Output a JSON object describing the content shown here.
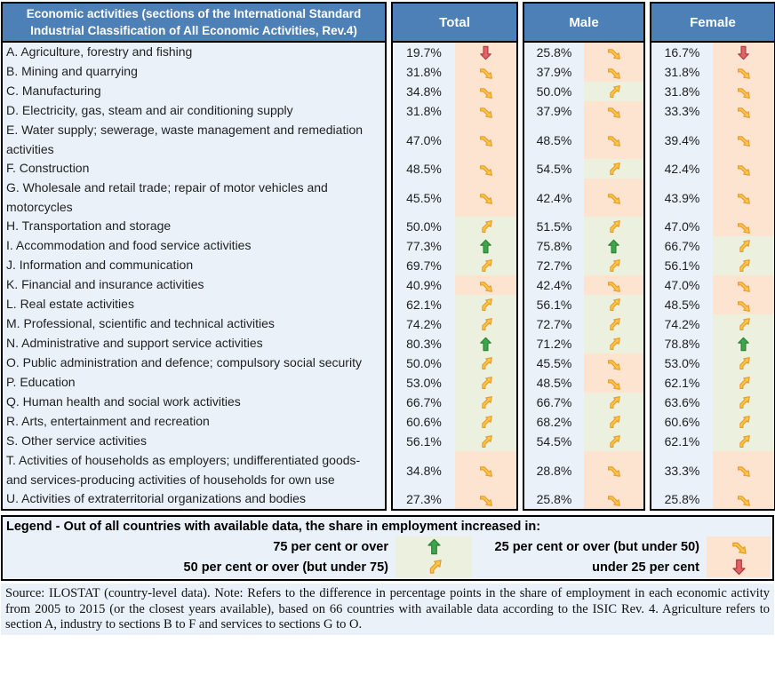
{
  "table": {
    "activities_header": "Economic activities (sections of the International Standard Industrial Classification of All Economic Activities, Rev.4)",
    "group_headers": [
      "Total",
      "Male",
      "Female"
    ]
  },
  "chart_data": {
    "type": "table",
    "columns": [
      "Economic activity",
      "Total %",
      "Total trend",
      "Male %",
      "Male trend",
      "Female %",
      "Female trend"
    ],
    "trend_meaning": {
      "up": "share in employment increased in 75 per cent or over of countries",
      "diag-up": "50 per cent or over (but under 75)",
      "diag-down": "25 per cent or over (but under 50)",
      "down": "under 25 per cent"
    },
    "rows": [
      {
        "activity": "A. Agriculture, forestry and fishing",
        "total": "19.7%",
        "total_trend": "down",
        "male": "25.8%",
        "male_trend": "diag-down",
        "female": "16.7%",
        "female_trend": "down"
      },
      {
        "activity": "B. Mining and quarrying",
        "total": "31.8%",
        "total_trend": "diag-down",
        "male": "37.9%",
        "male_trend": "diag-down",
        "female": "31.8%",
        "female_trend": "diag-down"
      },
      {
        "activity": "C. Manufacturing",
        "total": "34.8%",
        "total_trend": "diag-down",
        "male": "50.0%",
        "male_trend": "diag-up",
        "female": "31.8%",
        "female_trend": "diag-down"
      },
      {
        "activity": "D. Electricity, gas, steam and air conditioning supply",
        "total": "31.8%",
        "total_trend": "diag-down",
        "male": "37.9%",
        "male_trend": "diag-down",
        "female": "33.3%",
        "female_trend": "diag-down"
      },
      {
        "activity": "E. Water supply; sewerage, waste management and remediation activities",
        "total": "47.0%",
        "total_trend": "diag-down",
        "male": "48.5%",
        "male_trend": "diag-down",
        "female": "39.4%",
        "female_trend": "diag-down"
      },
      {
        "activity": "F. Construction",
        "total": "48.5%",
        "total_trend": "diag-down",
        "male": "54.5%",
        "male_trend": "diag-up",
        "female": "42.4%",
        "female_trend": "diag-down"
      },
      {
        "activity": "G. Wholesale and retail trade; repair of motor vehicles and motorcycles",
        "total": "45.5%",
        "total_trend": "diag-down",
        "male": "42.4%",
        "male_trend": "diag-down",
        "female": "43.9%",
        "female_trend": "diag-down"
      },
      {
        "activity": "H. Transportation and storage",
        "total": "50.0%",
        "total_trend": "diag-up",
        "male": "51.5%",
        "male_trend": "diag-up",
        "female": "47.0%",
        "female_trend": "diag-down"
      },
      {
        "activity": "I. Accommodation and food service activities",
        "total": "77.3%",
        "total_trend": "up",
        "male": "75.8%",
        "male_trend": "up",
        "female": "66.7%",
        "female_trend": "diag-up"
      },
      {
        "activity": "J. Information and communication",
        "total": "69.7%",
        "total_trend": "diag-up",
        "male": "72.7%",
        "male_trend": "diag-up",
        "female": "56.1%",
        "female_trend": "diag-up"
      },
      {
        "activity": "K. Financial and insurance activities",
        "total": "40.9%",
        "total_trend": "diag-down",
        "male": "42.4%",
        "male_trend": "diag-down",
        "female": "47.0%",
        "female_trend": "diag-down"
      },
      {
        "activity": "L. Real estate activities",
        "total": "62.1%",
        "total_trend": "diag-up",
        "male": "56.1%",
        "male_trend": "diag-up",
        "female": "48.5%",
        "female_trend": "diag-down"
      },
      {
        "activity": "M. Professional, scientific and technical activities",
        "total": "74.2%",
        "total_trend": "diag-up",
        "male": "72.7%",
        "male_trend": "diag-up",
        "female": "74.2%",
        "female_trend": "diag-up"
      },
      {
        "activity": "N. Administrative and support service activities",
        "total": "80.3%",
        "total_trend": "up",
        "male": "71.2%",
        "male_trend": "diag-up",
        "female": "78.8%",
        "female_trend": "up"
      },
      {
        "activity": "O. Public administration and defence; compulsory social security",
        "total": "50.0%",
        "total_trend": "diag-up",
        "male": "45.5%",
        "male_trend": "diag-down",
        "female": "53.0%",
        "female_trend": "diag-up"
      },
      {
        "activity": "P. Education",
        "total": "53.0%",
        "total_trend": "diag-up",
        "male": "48.5%",
        "male_trend": "diag-down",
        "female": "62.1%",
        "female_trend": "diag-up"
      },
      {
        "activity": "Q. Human health and social work activities",
        "total": "66.7%",
        "total_trend": "diag-up",
        "male": "66.7%",
        "male_trend": "diag-up",
        "female": "63.6%",
        "female_trend": "diag-up"
      },
      {
        "activity": "R. Arts, entertainment and recreation",
        "total": "60.6%",
        "total_trend": "diag-up",
        "male": "68.2%",
        "male_trend": "diag-up",
        "female": "60.6%",
        "female_trend": "diag-up"
      },
      {
        "activity": "S. Other service activities",
        "total": "56.1%",
        "total_trend": "diag-up",
        "male": "54.5%",
        "male_trend": "diag-up",
        "female": "62.1%",
        "female_trend": "diag-up"
      },
      {
        "activity": "T. Activities of households as employers; undifferentiated goods- and services-producing activities of households for own use",
        "total": "34.8%",
        "total_trend": "diag-down",
        "male": "28.8%",
        "male_trend": "diag-down",
        "female": "33.3%",
        "female_trend": "diag-down"
      },
      {
        "activity": "U. Activities of extraterritorial organizations and bodies",
        "total": "27.3%",
        "total_trend": "diag-down",
        "male": "25.8%",
        "male_trend": "diag-down",
        "female": "25.8%",
        "female_trend": "diag-down"
      }
    ]
  },
  "legend": {
    "title": "Legend - Out of all countries with available data, the share in employment increased in:",
    "items": [
      {
        "label": "75 per cent or over",
        "arrow": "up"
      },
      {
        "label": "25 per cent or over (but under 50)",
        "arrow": "diag-down"
      },
      {
        "label": "50 per cent or over (but under 75)",
        "arrow": "diag-up"
      },
      {
        "label": "under 25 per cent",
        "arrow": "down"
      }
    ]
  },
  "source_note": "Source: ILOSTAT (country-level data). Note: Refers to the difference in percentage points in the share of employment in each economic activity from 2005 to 2015 (or the closest years available), based on 66 countries with available data according to the ISIC Rev. 4. Agriculture refers to section A, industry to sections B to F and services to sections G to O.",
  "style": {
    "header_bg": "#4E80B8",
    "body_bg": "#EAF1F9",
    "green_bg": "#EBF1DE",
    "peach_bg": "#FCE4D0",
    "arrow_up": {
      "fill": "#3DA64B",
      "stroke": "#2B7F37"
    },
    "arrow_diag": {
      "fill": "#FDC545",
      "stroke": "#E59B2C"
    },
    "arrow_down": {
      "fill": "#E06366",
      "stroke": "#A93A3F"
    }
  }
}
